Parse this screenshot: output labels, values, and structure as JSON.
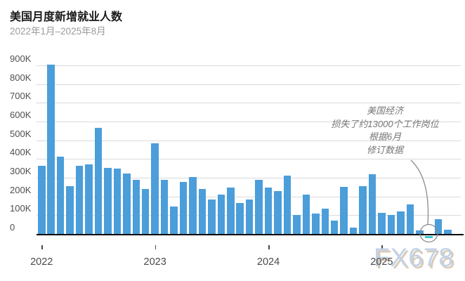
{
  "header": {
    "title": "美国月度新增就业人数",
    "subtitle": "2022年1月–2025年8月"
  },
  "watermark": "FX678",
  "annotation": {
    "lines": [
      "美国经济",
      "损失了约13000个工作岗位",
      "根据6月",
      "修订数据"
    ],
    "target_month": "2025-06",
    "target_value_thousands": -13
  },
  "colors": {
    "bar": "#4b9eda",
    "bar_negative": "#3cc4cf",
    "grid": "#dadada",
    "axis": "#000000",
    "annotation_line": "#8b8b8b",
    "watermark_text": "#c2d3e8",
    "watermark_shadow": "#d8cab7"
  },
  "chart_data": {
    "type": "bar",
    "title": "美国月度新增就业人数",
    "subtitle": "2022年1月–2025年8月",
    "unit": "jobs, thousands (K)",
    "grid": "horizontal gridlines on, black zero axis",
    "legend": "none",
    "ylim": [
      -50,
      930
    ],
    "yticks": [
      {
        "value": 0,
        "label": "0"
      },
      {
        "value": 100,
        "label": "100K"
      },
      {
        "value": 200,
        "label": "200K"
      },
      {
        "value": 300,
        "label": "300K"
      },
      {
        "value": 400,
        "label": "400K"
      },
      {
        "value": 500,
        "label": "500K"
      },
      {
        "value": 600,
        "label": "600K"
      },
      {
        "value": 700,
        "label": "700K"
      },
      {
        "value": 800,
        "label": "800K"
      },
      {
        "value": 900,
        "label": "900K"
      }
    ],
    "x_ticks": [
      {
        "label": "2022",
        "month_index": 0
      },
      {
        "label": "2023",
        "month_index": 12
      },
      {
        "label": "2024",
        "month_index": 24
      },
      {
        "label": "2025",
        "month_index": 36
      }
    ],
    "x": [
      "2022-01",
      "2022-02",
      "2022-03",
      "2022-04",
      "2022-05",
      "2022-06",
      "2022-07",
      "2022-08",
      "2022-09",
      "2022-10",
      "2022-11",
      "2022-12",
      "2023-01",
      "2023-02",
      "2023-03",
      "2023-04",
      "2023-05",
      "2023-06",
      "2023-07",
      "2023-08",
      "2023-09",
      "2023-10",
      "2023-11",
      "2023-12",
      "2024-01",
      "2024-02",
      "2024-03",
      "2024-04",
      "2024-05",
      "2024-06",
      "2024-07",
      "2024-08",
      "2024-09",
      "2024-10",
      "2024-11",
      "2024-12",
      "2025-01",
      "2025-02",
      "2025-03",
      "2025-04",
      "2025-05",
      "2025-06",
      "2025-07",
      "2025-08"
    ],
    "values": [
      364,
      904,
      414,
      254,
      364,
      370,
      568,
      352,
      350,
      324,
      290,
      239,
      482,
      287,
      146,
      278,
      303,
      240,
      184,
      210,
      246,
      165,
      182,
      290,
      246,
      229,
      310,
      100,
      210,
      110,
      135,
      70,
      250,
      35,
      256,
      319,
      111,
      102,
      120,
      158,
      19,
      -13,
      79,
      22
    ]
  }
}
